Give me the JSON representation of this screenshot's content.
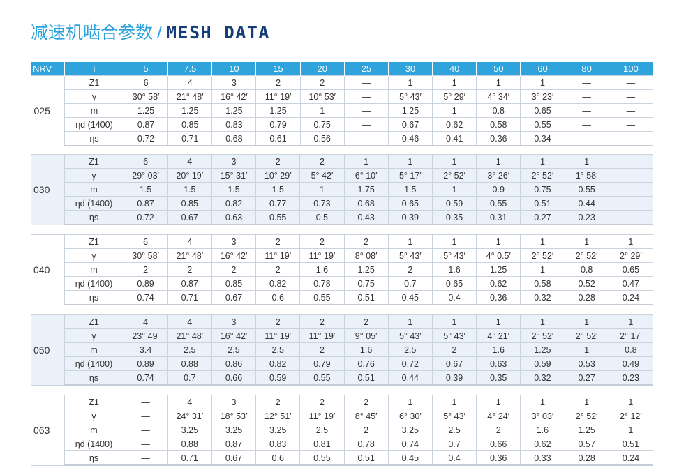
{
  "title": {
    "cn": "减速机啮合参数",
    "sep": "/",
    "en": "MESH DATA"
  },
  "colors": {
    "header_bg": "#2fa4dc",
    "title_cn": "#2aa2dc",
    "title_en": "#163e78",
    "alt_block_bg": "#eaf1f8"
  },
  "header": {
    "nrv": "NRV",
    "i": "i",
    "ratios": [
      "5",
      "7.5",
      "10",
      "15",
      "20",
      "25",
      "30",
      "40",
      "50",
      "60",
      "80",
      "100"
    ]
  },
  "row_labels": [
    "Z1",
    "γ",
    "m",
    "ηd (1400)",
    "ηs"
  ],
  "blocks": [
    {
      "size": "025",
      "rows": [
        [
          "6",
          "4",
          "3",
          "2",
          "2",
          "—",
          "1",
          "1",
          "1",
          "1",
          "—",
          "—"
        ],
        [
          "30° 58′",
          "21° 48′",
          "16° 42′",
          "11° 19′",
          "10° 53′",
          "—",
          "5° 43′",
          "5° 29′",
          "4° 34′",
          "3° 23′",
          "—",
          "—"
        ],
        [
          "1.25",
          "1.25",
          "1.25",
          "1.25",
          "1",
          "—",
          "1.25",
          "1",
          "0.8",
          "0.65",
          "—",
          "—"
        ],
        [
          "0.87",
          "0.85",
          "0.83",
          "0.79",
          "0.75",
          "—",
          "0.67",
          "0.62",
          "0.58",
          "0.55",
          "—",
          "—"
        ],
        [
          "0.72",
          "0.71",
          "0.68",
          "0.61",
          "0.56",
          "—",
          "0.46",
          "0.41",
          "0.36",
          "0.34",
          "—",
          "—"
        ]
      ]
    },
    {
      "size": "030",
      "rows": [
        [
          "6",
          "4",
          "3",
          "2",
          "2",
          "1",
          "1",
          "1",
          "1",
          "1",
          "1",
          "—"
        ],
        [
          "29° 03′",
          "20° 19′",
          "15° 31′",
          "10° 29′",
          "5° 42′",
          "6° 10′",
          "5° 17′",
          "2° 52′",
          "3° 26′",
          "2° 52′",
          "1° 58′",
          "—"
        ],
        [
          "1.5",
          "1.5",
          "1.5",
          "1.5",
          "1",
          "1.75",
          "1.5",
          "1",
          "0.9",
          "0.75",
          "0.55",
          "—"
        ],
        [
          "0.87",
          "0.85",
          "0.82",
          "0.77",
          "0.73",
          "0.68",
          "0.65",
          "0.59",
          "0.55",
          "0.51",
          "0.44",
          "—"
        ],
        [
          "0.72",
          "0.67",
          "0.63",
          "0.55",
          "0.5",
          "0.43",
          "0.39",
          "0.35",
          "0.31",
          "0.27",
          "0.23",
          "—"
        ]
      ]
    },
    {
      "size": "040",
      "rows": [
        [
          "6",
          "4",
          "3",
          "2",
          "2",
          "2",
          "1",
          "1",
          "1",
          "1",
          "1",
          "1"
        ],
        [
          "30° 58′",
          "21° 48′",
          "16° 42′",
          "11° 19′",
          "11° 19′",
          "8° 08′",
          "5° 43′",
          "5° 43′",
          "4° 0.5′",
          "2° 52′",
          "2° 52′",
          "2° 29′"
        ],
        [
          "2",
          "2",
          "2",
          "2",
          "1.6",
          "1.25",
          "2",
          "1.6",
          "1.25",
          "1",
          "0.8",
          "0.65"
        ],
        [
          "0.89",
          "0.87",
          "0.85",
          "0.82",
          "0.78",
          "0.75",
          "0.7",
          "0.65",
          "0.62",
          "0.58",
          "0.52",
          "0.47"
        ],
        [
          "0.74",
          "0.71",
          "0.67",
          "0.6",
          "0.55",
          "0.51",
          "0.45",
          "0.4",
          "0.36",
          "0.32",
          "0.28",
          "0.24"
        ]
      ]
    },
    {
      "size": "050",
      "rows": [
        [
          "4",
          "4",
          "3",
          "2",
          "2",
          "2",
          "1",
          "1",
          "1",
          "1",
          "1",
          "1"
        ],
        [
          "23° 49′",
          "21° 48′",
          "16° 42′",
          "11° 19′",
          "11° 19′",
          "9° 05′",
          "5° 43′",
          "5° 43′",
          "4° 21′",
          "2° 52′",
          "2° 52′",
          "2° 17′"
        ],
        [
          "3.4",
          "2.5",
          "2.5",
          "2.5",
          "2",
          "1.6",
          "2.5",
          "2",
          "1.6",
          "1.25",
          "1",
          "0.8"
        ],
        [
          "0.89",
          "0.88",
          "0.86",
          "0.82",
          "0.79",
          "0.76",
          "0.72",
          "0.67",
          "0.63",
          "0.59",
          "0.53",
          "0.49"
        ],
        [
          "0.74",
          "0.7",
          "0.66",
          "0.59",
          "0.55",
          "0.51",
          "0.44",
          "0.39",
          "0.35",
          "0.32",
          "0.27",
          "0.23"
        ]
      ]
    },
    {
      "size": "063",
      "rows": [
        [
          "—",
          "4",
          "3",
          "2",
          "2",
          "2",
          "1",
          "1",
          "1",
          "1",
          "1",
          "1"
        ],
        [
          "—",
          "24° 31′",
          "18° 53′",
          "12° 51′",
          "11° 19′",
          "8° 45′",
          "6° 30′",
          "5° 43′",
          "4° 24′",
          "3° 03′",
          "2° 52′",
          "2° 12′"
        ],
        [
          "—",
          "3.25",
          "3.25",
          "3.25",
          "2.5",
          "2",
          "3.25",
          "2.5",
          "2",
          "1.6",
          "1.25",
          "1"
        ],
        [
          "—",
          "0.88",
          "0.87",
          "0.83",
          "0.81",
          "0.78",
          "0.74",
          "0.7",
          "0.66",
          "0.62",
          "0.57",
          "0.51"
        ],
        [
          "—",
          "0.71",
          "0.67",
          "0.6",
          "0.55",
          "0.51",
          "0.45",
          "0.4",
          "0.36",
          "0.33",
          "0.28",
          "0.24"
        ]
      ]
    }
  ]
}
